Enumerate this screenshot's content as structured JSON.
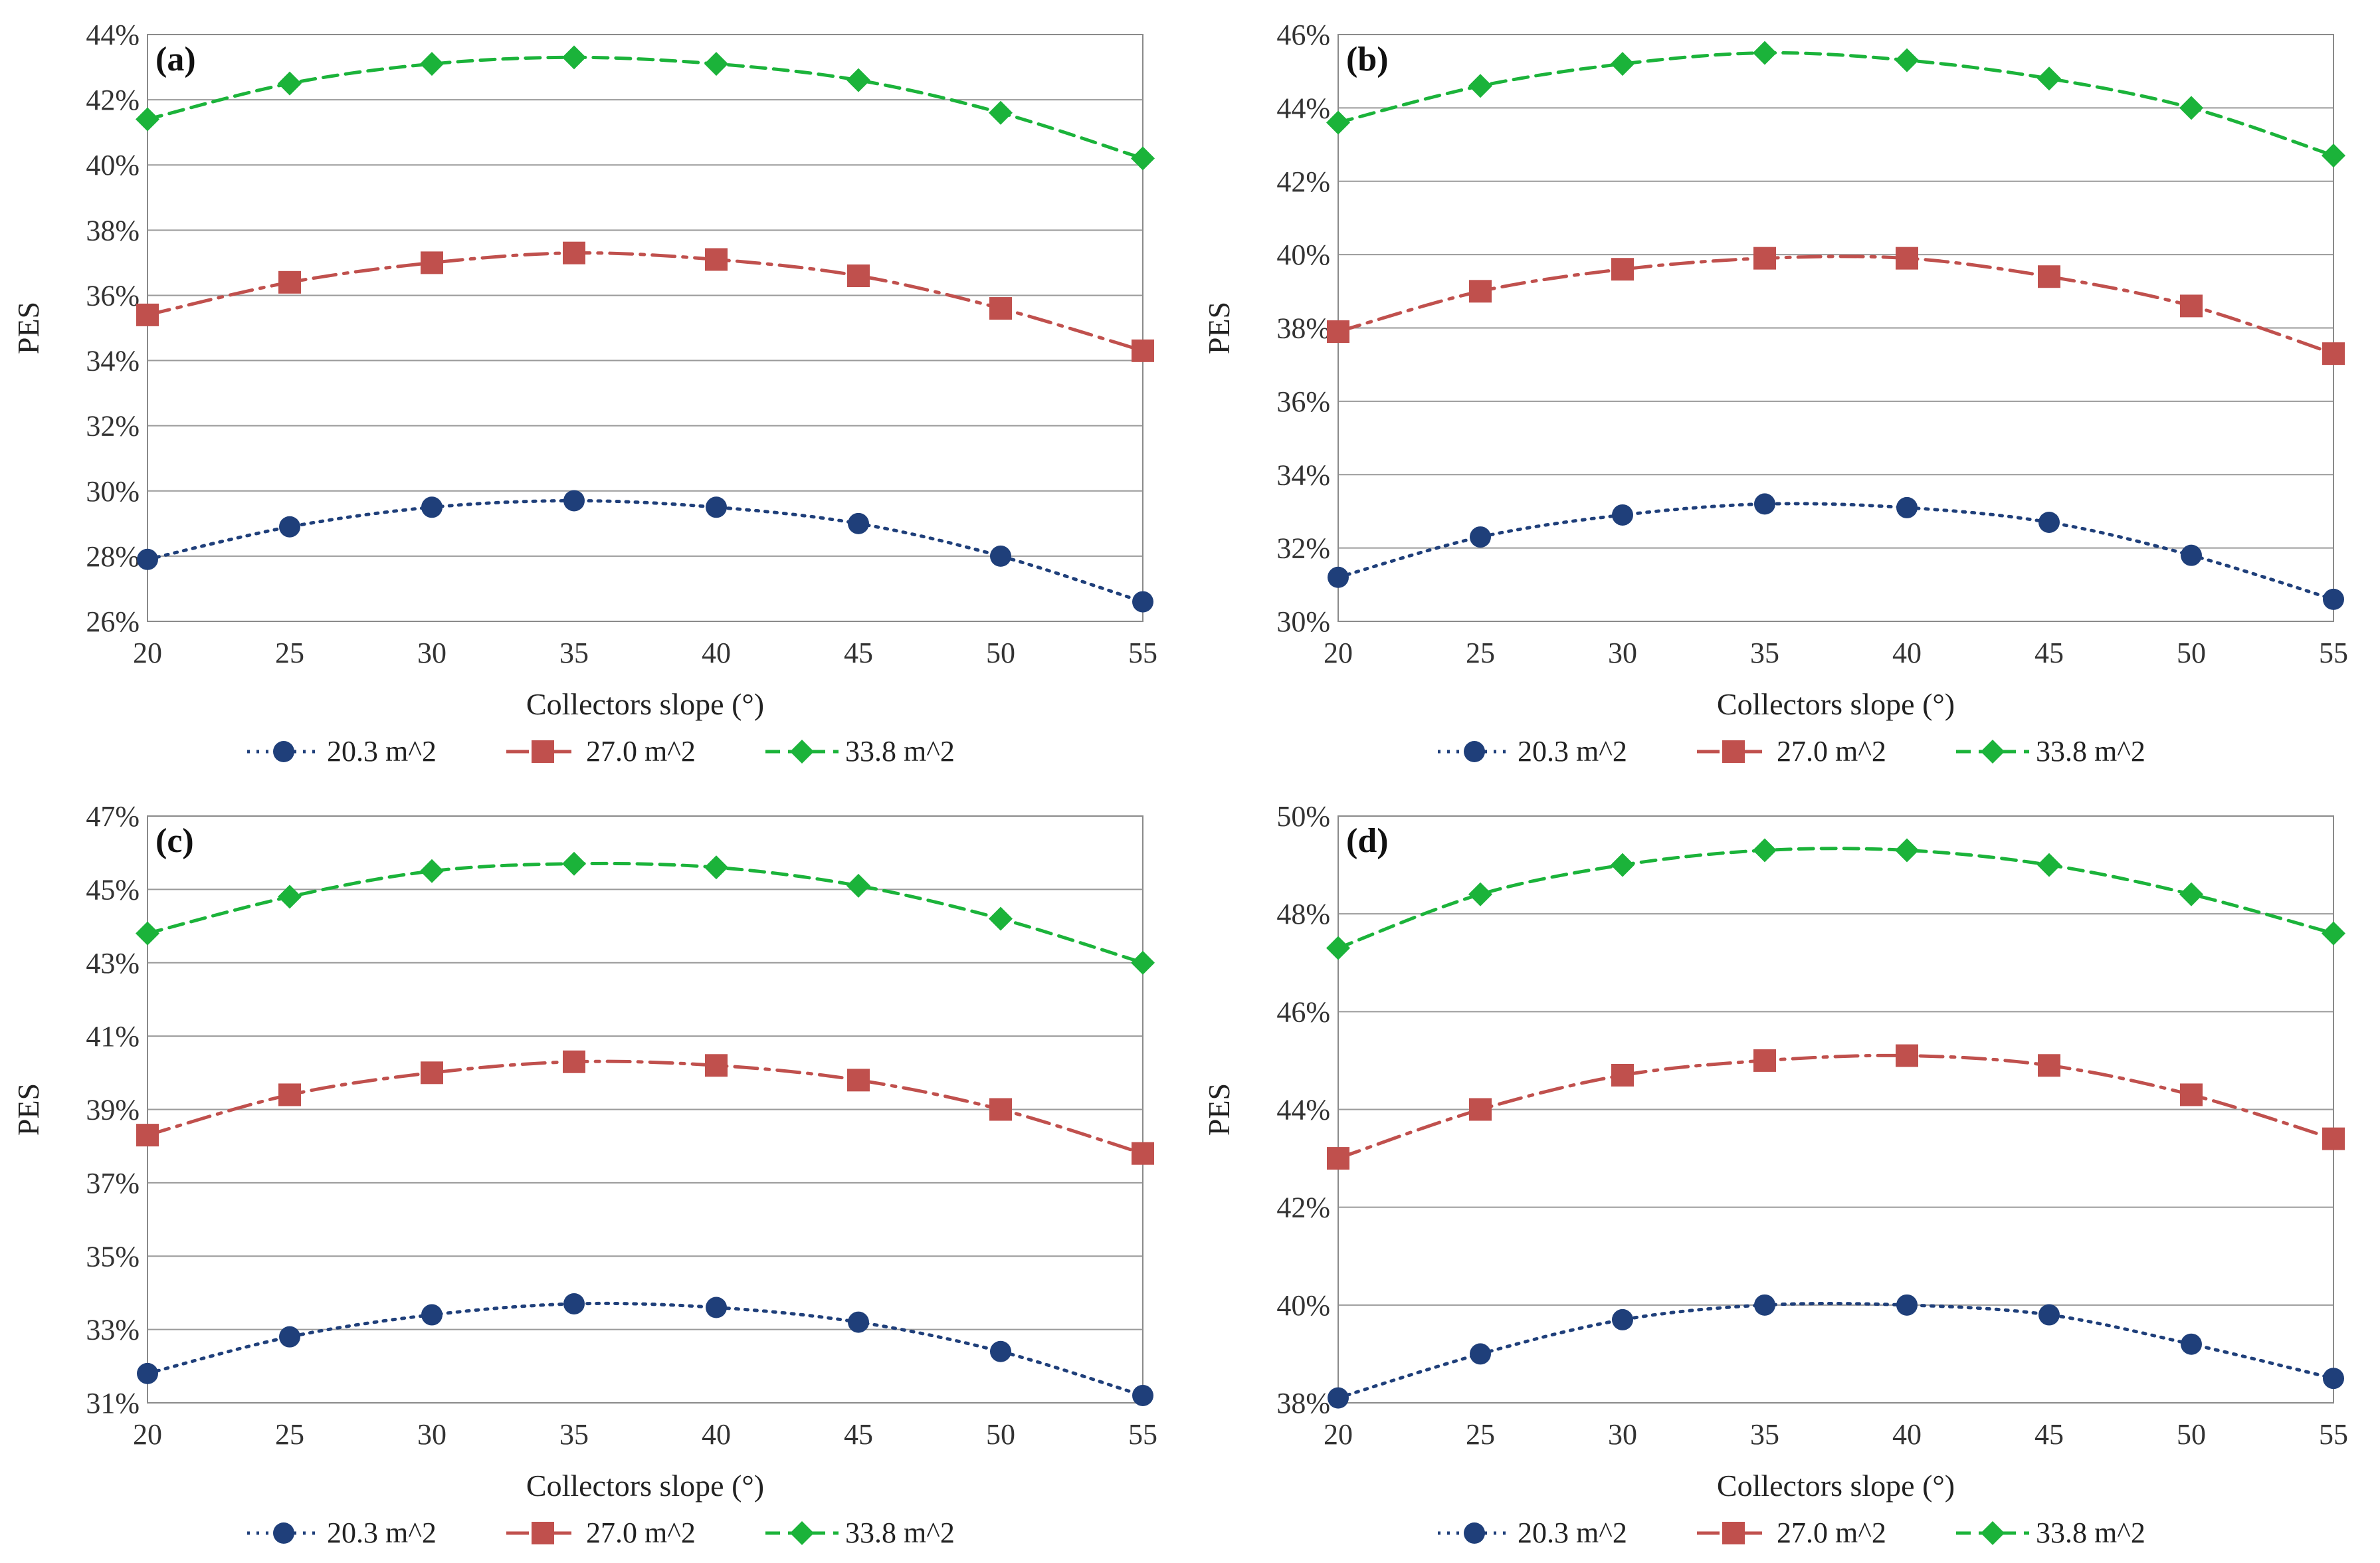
{
  "chart_data": [
    {
      "type": "line",
      "panel_label": "(a)",
      "xlabel": "Collectors slope (°)",
      "ylabel": "PES",
      "x": [
        20,
        25,
        30,
        35,
        40,
        45,
        50,
        55
      ],
      "ylim": [
        26,
        44
      ],
      "yticks": [
        26,
        28,
        30,
        32,
        34,
        36,
        38,
        40,
        42,
        44
      ],
      "series": [
        {
          "name": "20.3 m^2",
          "color": "#1F3F7A",
          "marker": "circle",
          "dash": "dotted",
          "values": [
            27.9,
            28.9,
            29.5,
            29.7,
            29.5,
            29.0,
            28.0,
            26.6
          ]
        },
        {
          "name": "27.0 m^2",
          "color": "#C0504D",
          "marker": "square",
          "dash": "dash-dot",
          "values": [
            35.4,
            36.4,
            37.0,
            37.3,
            37.1,
            36.6,
            35.6,
            34.3
          ]
        },
        {
          "name": "33.8 m^2",
          "color": "#1BB33A",
          "marker": "diamond",
          "dash": "dashed",
          "values": [
            41.4,
            42.5,
            43.1,
            43.3,
            43.1,
            42.6,
            41.6,
            40.2
          ]
        }
      ]
    },
    {
      "type": "line",
      "panel_label": "(b)",
      "xlabel": "Collectors slope (°)",
      "ylabel": "PES",
      "x": [
        20,
        25,
        30,
        35,
        40,
        45,
        50,
        55
      ],
      "ylim": [
        30,
        46
      ],
      "yticks": [
        30,
        32,
        34,
        36,
        38,
        40,
        42,
        44,
        46
      ],
      "series": [
        {
          "name": "20.3 m^2",
          "color": "#1F3F7A",
          "marker": "circle",
          "dash": "dotted",
          "values": [
            31.2,
            32.3,
            32.9,
            33.2,
            33.1,
            32.7,
            31.8,
            30.6
          ]
        },
        {
          "name": "27.0 m^2",
          "color": "#C0504D",
          "marker": "square",
          "dash": "dash-dot",
          "values": [
            37.9,
            39.0,
            39.6,
            39.9,
            39.9,
            39.4,
            38.6,
            37.3
          ]
        },
        {
          "name": "33.8 m^2",
          "color": "#1BB33A",
          "marker": "diamond",
          "dash": "dashed",
          "values": [
            43.6,
            44.6,
            45.2,
            45.5,
            45.3,
            44.8,
            44.0,
            42.7
          ]
        }
      ]
    },
    {
      "type": "line",
      "panel_label": "(c)",
      "xlabel": "Collectors slope (°)",
      "ylabel": "PES",
      "x": [
        20,
        25,
        30,
        35,
        40,
        45,
        50,
        55
      ],
      "ylim": [
        31,
        47
      ],
      "yticks": [
        31,
        33,
        35,
        37,
        39,
        41,
        43,
        45,
        47
      ],
      "series": [
        {
          "name": "20.3 m^2",
          "color": "#1F3F7A",
          "marker": "circle",
          "dash": "dotted",
          "values": [
            31.8,
            32.8,
            33.4,
            33.7,
            33.6,
            33.2,
            32.4,
            31.2
          ]
        },
        {
          "name": "27.0 m^2",
          "color": "#C0504D",
          "marker": "square",
          "dash": "dash-dot",
          "values": [
            38.3,
            39.4,
            40.0,
            40.3,
            40.2,
            39.8,
            39.0,
            37.8
          ]
        },
        {
          "name": "33.8 m^2",
          "color": "#1BB33A",
          "marker": "diamond",
          "dash": "dashed",
          "values": [
            43.8,
            44.8,
            45.5,
            45.7,
            45.6,
            45.1,
            44.2,
            43.0
          ]
        }
      ]
    },
    {
      "type": "line",
      "panel_label": "(d)",
      "xlabel": "Collectors slope (°)",
      "ylabel": "PES",
      "x": [
        20,
        25,
        30,
        35,
        40,
        45,
        50,
        55
      ],
      "ylim": [
        38,
        50
      ],
      "yticks": [
        38,
        40,
        42,
        44,
        46,
        48,
        50
      ],
      "series": [
        {
          "name": "20.3 m^2",
          "color": "#1F3F7A",
          "marker": "circle",
          "dash": "dotted",
          "values": [
            38.1,
            39.0,
            39.7,
            40.0,
            40.0,
            39.8,
            39.2,
            38.5
          ]
        },
        {
          "name": "27.0 m^2",
          "color": "#C0504D",
          "marker": "square",
          "dash": "dash-dot",
          "values": [
            43.0,
            44.0,
            44.7,
            45.0,
            45.1,
            44.9,
            44.3,
            43.4
          ]
        },
        {
          "name": "33.8 m^2",
          "color": "#1BB33A",
          "marker": "diamond",
          "dash": "dashed",
          "values": [
            47.3,
            48.4,
            49.0,
            49.3,
            49.3,
            49.0,
            48.4,
            47.6
          ]
        }
      ]
    }
  ]
}
